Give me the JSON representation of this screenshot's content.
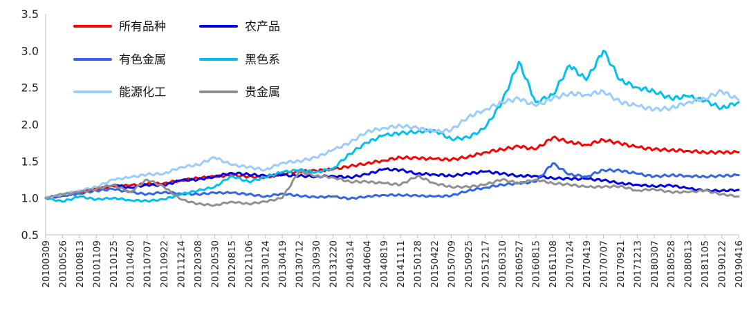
{
  "chart_data": {
    "type": "line",
    "title": "",
    "xlabel": "",
    "ylabel": "",
    "ylim": [
      0.5,
      3.5
    ],
    "yticks": [
      "0.5",
      "1.0",
      "1.5",
      "2.0",
      "2.5",
      "3.0",
      "3.5"
    ],
    "grid": false,
    "legend_position": "top-left",
    "x_tick_labels": [
      "20100309",
      "20100526",
      "20100813",
      "20101109",
      "20110125",
      "20110420",
      "20110707",
      "20110922",
      "20111214",
      "20120308",
      "20120530",
      "20120815",
      "20121106",
      "20130124",
      "20130419",
      "20130712",
      "20130930",
      "20131220",
      "20140314",
      "20140604",
      "20140819",
      "20141111",
      "20150128",
      "20150422",
      "20150709",
      "20150925",
      "20151217",
      "20160310",
      "20160527",
      "20160815",
      "20161108",
      "20170124",
      "20170419",
      "20170707",
      "20170921",
      "20171213",
      "20180307",
      "20180528",
      "20180813",
      "20181105",
      "20190122",
      "20190416"
    ],
    "series": [
      {
        "name": "所有品种",
        "color": "#ff0000",
        "values": [
          1.0,
          1.04,
          1.09,
          1.12,
          1.16,
          1.17,
          1.19,
          1.2,
          1.24,
          1.27,
          1.29,
          1.31,
          1.29,
          1.28,
          1.33,
          1.36,
          1.37,
          1.39,
          1.43,
          1.47,
          1.51,
          1.55,
          1.54,
          1.53,
          1.52,
          1.56,
          1.62,
          1.66,
          1.7,
          1.66,
          1.82,
          1.76,
          1.72,
          1.79,
          1.74,
          1.69,
          1.66,
          1.65,
          1.64,
          1.62,
          1.62,
          1.62
        ]
      },
      {
        "name": "农产品",
        "color": "#0000e6",
        "values": [
          1.0,
          1.03,
          1.08,
          1.12,
          1.18,
          1.14,
          1.18,
          1.17,
          1.24,
          1.25,
          1.29,
          1.34,
          1.32,
          1.3,
          1.31,
          1.3,
          1.29,
          1.3,
          1.28,
          1.32,
          1.39,
          1.38,
          1.33,
          1.32,
          1.3,
          1.33,
          1.36,
          1.33,
          1.3,
          1.3,
          1.27,
          1.26,
          1.26,
          1.24,
          1.2,
          1.18,
          1.16,
          1.17,
          1.13,
          1.1,
          1.1,
          1.11
        ]
      },
      {
        "name": "有色金属",
        "color": "#3366e6",
        "values": [
          1.0,
          1.03,
          1.06,
          1.1,
          1.12,
          1.08,
          1.05,
          1.08,
          1.06,
          1.05,
          1.07,
          1.07,
          1.05,
          1.02,
          1.06,
          1.03,
          1.01,
          1.02,
          0.99,
          1.02,
          1.04,
          1.04,
          1.03,
          1.02,
          1.03,
          1.1,
          1.14,
          1.18,
          1.2,
          1.22,
          1.47,
          1.32,
          1.29,
          1.38,
          1.37,
          1.33,
          1.29,
          1.31,
          1.3,
          1.29,
          1.3,
          1.31
        ]
      },
      {
        "name": "黑色系",
        "color": "#00c0ee",
        "values": [
          1.0,
          0.95,
          1.02,
          0.98,
          1.0,
          0.97,
          0.96,
          0.98,
          1.05,
          1.1,
          1.15,
          1.3,
          1.22,
          1.28,
          1.35,
          1.38,
          1.35,
          1.4,
          1.6,
          1.75,
          1.85,
          1.88,
          1.9,
          1.92,
          1.8,
          1.82,
          1.95,
          2.3,
          2.85,
          2.3,
          2.4,
          2.8,
          2.6,
          3.0,
          2.6,
          2.5,
          2.45,
          2.35,
          2.38,
          2.32,
          2.22,
          2.3
        ]
      },
      {
        "name": "能源化工",
        "color": "#99ccff",
        "values": [
          1.0,
          1.05,
          1.1,
          1.15,
          1.25,
          1.28,
          1.32,
          1.33,
          1.42,
          1.45,
          1.55,
          1.45,
          1.42,
          1.38,
          1.48,
          1.5,
          1.55,
          1.65,
          1.75,
          1.9,
          1.95,
          1.98,
          1.95,
          1.9,
          1.92,
          2.1,
          2.2,
          2.3,
          2.35,
          2.25,
          2.35,
          2.42,
          2.4,
          2.45,
          2.3,
          2.25,
          2.2,
          2.22,
          2.3,
          2.35,
          2.45,
          2.33
        ]
      },
      {
        "name": "贵金属",
        "color": "#909090",
        "values": [
          1.0,
          1.05,
          1.08,
          1.12,
          1.18,
          1.08,
          1.25,
          1.15,
          0.98,
          0.92,
          0.9,
          0.95,
          0.92,
          0.95,
          1.0,
          1.36,
          1.3,
          1.28,
          1.22,
          1.22,
          1.2,
          1.18,
          1.3,
          1.2,
          1.15,
          1.15,
          1.18,
          1.25,
          1.2,
          1.25,
          1.2,
          1.18,
          1.15,
          1.15,
          1.16,
          1.1,
          1.12,
          1.08,
          1.08,
          1.1,
          1.05,
          1.02
        ]
      }
    ]
  }
}
